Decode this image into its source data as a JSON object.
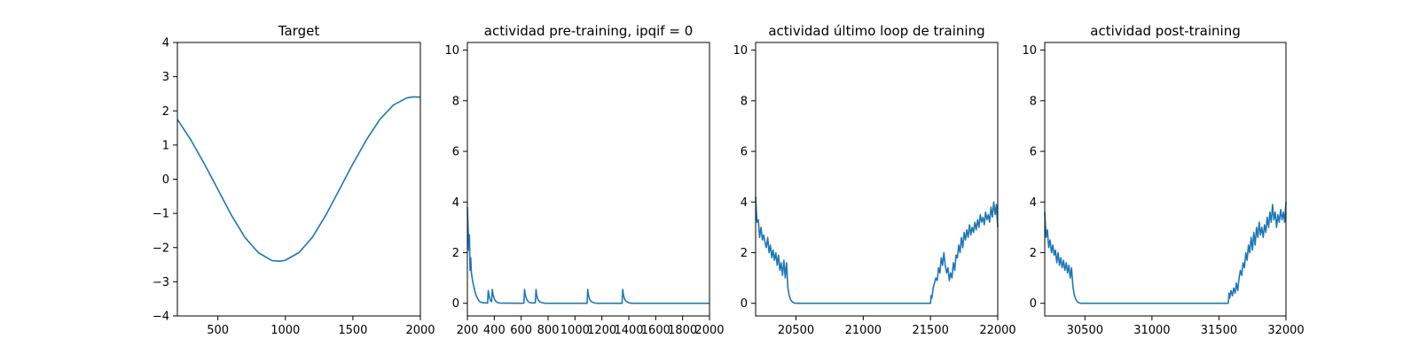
{
  "figure": {
    "line_color": "#1f77b4",
    "grid": false,
    "legend": "none"
  },
  "chart_data": [
    {
      "type": "line",
      "title": "Target",
      "xlabel": "",
      "ylabel": "",
      "xlim": [
        200,
        2000
      ],
      "ylim": [
        -4,
        4
      ],
      "xticks": [
        500,
        1000,
        1500,
        2000
      ],
      "yticks": [
        -4,
        -3,
        -2,
        -1,
        0,
        1,
        2,
        3,
        4
      ],
      "series": [
        {
          "x": [
            200,
            300,
            400,
            500,
            600,
            700,
            800,
            900,
            960,
            1000,
            1100,
            1200,
            1300,
            1400,
            1500,
            1600,
            1700,
            1800,
            1900,
            1950,
            2000
          ],
          "y": [
            1.75,
            1.15,
            0.45,
            -0.3,
            -1.05,
            -1.7,
            -2.15,
            -2.38,
            -2.4,
            -2.37,
            -2.15,
            -1.7,
            -1.05,
            -0.3,
            0.45,
            1.15,
            1.75,
            2.17,
            2.38,
            2.41,
            2.4
          ]
        }
      ]
    },
    {
      "type": "line",
      "title": "actividad pre-training, ipqif = 0",
      "xlabel": "",
      "ylabel": "",
      "xlim": [
        200,
        2000
      ],
      "ylim": [
        -0.5,
        10.3
      ],
      "xticks": [
        200,
        400,
        600,
        800,
        1000,
        1200,
        1400,
        1600,
        1800,
        2000
      ],
      "yticks": [
        0,
        2,
        4,
        6,
        8,
        10
      ],
      "series": [
        {
          "x": [
            200,
            205,
            210,
            215,
            220,
            225,
            230,
            240,
            250,
            260,
            270,
            280,
            290,
            300,
            320,
            350,
            355,
            360,
            370,
            380,
            385,
            390,
            400,
            410,
            420,
            440,
            600,
            620,
            625,
            630,
            640,
            650,
            660,
            680,
            705,
            710,
            715,
            725,
            740,
            760,
            780,
            1090,
            1095,
            1100,
            1110,
            1120,
            1140,
            1160,
            1350,
            1355,
            1360,
            1370,
            1380,
            1400,
            1420,
            2000
          ],
          "y": [
            3.8,
            3.0,
            2.1,
            2.7,
            1.3,
            1.8,
            1.2,
            0.85,
            0.6,
            0.4,
            0.25,
            0.15,
            0.08,
            0.04,
            0.02,
            0.01,
            0.5,
            0.32,
            0.12,
            0.06,
            0.55,
            0.35,
            0.18,
            0.08,
            0.04,
            0.01,
            0.0,
            0.01,
            0.55,
            0.35,
            0.17,
            0.08,
            0.04,
            0.01,
            0.02,
            0.55,
            0.32,
            0.14,
            0.05,
            0.02,
            0.0,
            0.0,
            0.55,
            0.33,
            0.15,
            0.07,
            0.02,
            0.0,
            0.0,
            0.55,
            0.33,
            0.15,
            0.07,
            0.02,
            0.0,
            0.0
          ]
        }
      ]
    },
    {
      "type": "line",
      "title": "actividad último loop de training",
      "xlabel": "",
      "ylabel": "",
      "xlim": [
        20200,
        22000
      ],
      "ylim": [
        -0.5,
        10.3
      ],
      "xticks": [
        20500,
        21000,
        21500,
        22000
      ],
      "yticks": [
        0,
        2,
        4,
        6,
        8,
        10
      ],
      "series": [
        {
          "x": [
            20200,
            20210,
            20220,
            20230,
            20240,
            20250,
            20260,
            20270,
            20280,
            20290,
            20300,
            20310,
            20320,
            20330,
            20340,
            20350,
            20360,
            20370,
            20380,
            20390,
            20400,
            20410,
            20420,
            20430,
            20440,
            20450,
            20460,
            20470,
            20480,
            20490,
            20500,
            20520,
            20550,
            21500,
            21505,
            21510,
            21520,
            21530,
            21540,
            21550,
            21560,
            21570,
            21580,
            21590,
            21600,
            21610,
            21620,
            21630,
            21640,
            21650,
            21660,
            21670,
            21680,
            21690,
            21700,
            21710,
            21720,
            21730,
            21740,
            21750,
            21760,
            21770,
            21780,
            21790,
            21800,
            21810,
            21820,
            21830,
            21840,
            21850,
            21860,
            21870,
            21880,
            21890,
            21900,
            21910,
            21920,
            21930,
            21940,
            21950,
            21960,
            21970,
            21980,
            21990,
            22000
          ],
          "y": [
            4.2,
            3.2,
            3.3,
            2.6,
            3.0,
            2.5,
            2.7,
            2.4,
            2.2,
            2.6,
            2.0,
            2.3,
            1.8,
            2.1,
            1.7,
            2.0,
            1.5,
            1.9,
            1.3,
            1.6,
            1.1,
            1.7,
            1.0,
            1.6,
            0.6,
            0.3,
            0.15,
            0.07,
            0.03,
            0.01,
            0.0,
            0.0,
            0.0,
            0.0,
            0.3,
            0.2,
            0.6,
            0.8,
            1.0,
            0.9,
            1.4,
            1.2,
            1.8,
            1.5,
            2.0,
            1.5,
            1.2,
            1.4,
            0.9,
            1.2,
            1.0,
            1.6,
            1.3,
            1.9,
            1.8,
            2.3,
            2.0,
            2.6,
            2.2,
            2.8,
            2.5,
            2.9,
            2.6,
            3.1,
            2.7,
            3.0,
            2.8,
            3.2,
            2.9,
            3.3,
            3.0,
            3.5,
            3.2,
            3.4,
            3.1,
            3.6,
            3.3,
            3.5,
            3.2,
            3.8,
            3.4,
            4.0,
            3.5,
            3.9,
            3.0
          ]
        }
      ]
    },
    {
      "type": "line",
      "title": "actividad post-training",
      "xlabel": "",
      "ylabel": "",
      "xlim": [
        30200,
        32000
      ],
      "ylim": [
        -0.5,
        10.3
      ],
      "xticks": [
        30500,
        31000,
        31500,
        32000
      ],
      "yticks": [
        0,
        2,
        4,
        6,
        8,
        10
      ],
      "series": [
        {
          "x": [
            30200,
            30210,
            30220,
            30230,
            30240,
            30250,
            30260,
            30270,
            30280,
            30290,
            30300,
            30310,
            30320,
            30330,
            30340,
            30350,
            30360,
            30370,
            30380,
            30390,
            30400,
            30410,
            30420,
            30430,
            30440,
            30450,
            30460,
            30470,
            30480,
            30490,
            30500,
            30520,
            30550,
            31570,
            31575,
            31580,
            31590,
            31600,
            31610,
            31620,
            31630,
            31640,
            31650,
            31660,
            31670,
            31680,
            31690,
            31700,
            31710,
            31720,
            31730,
            31740,
            31750,
            31760,
            31770,
            31780,
            31790,
            31800,
            31810,
            31820,
            31830,
            31840,
            31850,
            31860,
            31870,
            31880,
            31890,
            31900,
            31910,
            31920,
            31930,
            31940,
            31950,
            31960,
            31970,
            31980,
            31990,
            32000
          ],
          "y": [
            3.6,
            2.6,
            2.9,
            2.2,
            2.5,
            2.0,
            2.3,
            1.9,
            2.1,
            1.6,
            2.0,
            1.5,
            1.8,
            1.4,
            1.7,
            1.3,
            1.6,
            1.2,
            1.5,
            1.0,
            1.4,
            0.7,
            0.35,
            0.18,
            0.08,
            0.03,
            0.01,
            0.0,
            0.0,
            0.0,
            0.0,
            0.0,
            0.0,
            0.0,
            0.4,
            0.2,
            0.5,
            0.3,
            0.6,
            0.4,
            0.8,
            0.5,
            1.0,
            1.3,
            1.1,
            1.6,
            1.4,
            2.0,
            1.7,
            2.3,
            2.0,
            2.6,
            2.1,
            2.8,
            2.3,
            3.0,
            2.6,
            3.2,
            2.7,
            3.0,
            2.6,
            3.1,
            2.8,
            3.4,
            3.0,
            3.6,
            3.2,
            3.9,
            3.3,
            3.6,
            3.0,
            3.5,
            3.2,
            3.7,
            3.3,
            3.6,
            3.2,
            4.0
          ]
        }
      ]
    }
  ]
}
